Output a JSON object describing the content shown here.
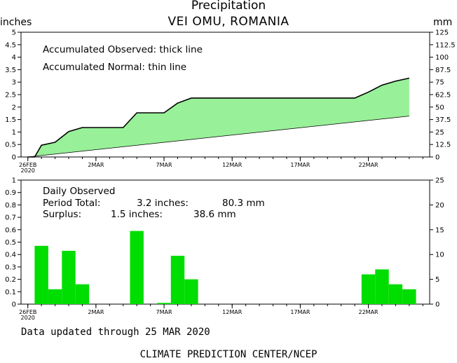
{
  "header": {
    "title": "Precipitation",
    "subtitle": "VEI OMU, ROMANIA",
    "left_unit": "inches",
    "right_unit": "mm"
  },
  "footer": {
    "updated": "Data updated through 25 MAR 2020",
    "credit": "CLIMATE PREDICTION CENTER/NCEP"
  },
  "colors": {
    "fill": "#98f098",
    "bars": "#00dd00",
    "lines": "#000000"
  },
  "chart_data": [
    {
      "type": "area",
      "notes": [
        "Accumulated Observed: thick line",
        "Accumulated Normal: thin line"
      ],
      "x_unit": "day",
      "x_ticks": [
        {
          "day": 0,
          "label": "26FEB",
          "sublabel": "2020"
        },
        {
          "day": 5,
          "label": "2MAR"
        },
        {
          "day": 10,
          "label": "7MAR"
        },
        {
          "day": 15,
          "label": "12MAR"
        },
        {
          "day": 20,
          "label": "17MAR"
        },
        {
          "day": 25,
          "label": "22MAR"
        }
      ],
      "xlim": [
        -0.5,
        29.5
      ],
      "ylim_inches": [
        0,
        5
      ],
      "yticks_inches": [
        "0",
        "0.5",
        "1",
        "1.5",
        "2",
        "2.5",
        "3",
        "3.5",
        "4",
        "4.5",
        "5"
      ],
      "ylim_mm": [
        0,
        125
      ],
      "yticks_mm": [
        "0",
        "12.5",
        "25",
        "37.5",
        "50",
        "62.5",
        "75",
        "87.5",
        "100",
        "112.5",
        "125"
      ],
      "series": [
        {
          "name": "Accumulated Observed",
          "x": [
            0,
            0.5,
            1,
            2,
            3,
            4,
            5,
            6,
            7,
            8,
            9,
            10,
            11,
            12,
            13,
            14,
            15,
            16,
            17,
            18,
            19,
            20,
            21,
            22,
            23,
            24,
            25,
            26,
            27,
            28
          ],
          "y": [
            0.0,
            0.0,
            0.47,
            0.59,
            1.02,
            1.18,
            1.18,
            1.18,
            1.18,
            1.77,
            1.77,
            1.77,
            2.16,
            2.36,
            2.36,
            2.36,
            2.36,
            2.36,
            2.36,
            2.36,
            2.36,
            2.36,
            2.36,
            2.36,
            2.36,
            2.36,
            2.6,
            2.88,
            3.04,
            3.16
          ]
        },
        {
          "name": "Accumulated Normal",
          "x": [
            0,
            28
          ],
          "y": [
            0.0,
            1.64
          ]
        }
      ]
    },
    {
      "type": "bar",
      "notes": [
        "Daily Observed"
      ],
      "stats": [
        {
          "label": "Period Total:",
          "inches": "3.2 inches:",
          "mm": "80.3 mm"
        },
        {
          "label": "Surplus:",
          "inches": "1.5 inches:",
          "mm": "38.6 mm"
        }
      ],
      "ylim_inches": [
        0,
        1
      ],
      "yticks_inches": [
        "0",
        "0.1",
        "0.2",
        "0.3",
        "0.4",
        "0.5",
        "0.6",
        "0.7",
        "0.8",
        "0.9",
        "1"
      ],
      "ylim_mm": [
        0,
        25
      ],
      "yticks_mm": [
        "0",
        "5",
        "10",
        "15",
        "20",
        "25"
      ],
      "series": [
        {
          "name": "Daily Observed",
          "x": [
            1,
            2,
            3,
            4,
            8,
            10,
            11,
            12,
            25,
            26,
            27,
            28
          ],
          "y": [
            0.47,
            0.12,
            0.43,
            0.16,
            0.59,
            0.01,
            0.39,
            0.2,
            0.24,
            0.28,
            0.16,
            0.12
          ]
        }
      ]
    }
  ]
}
